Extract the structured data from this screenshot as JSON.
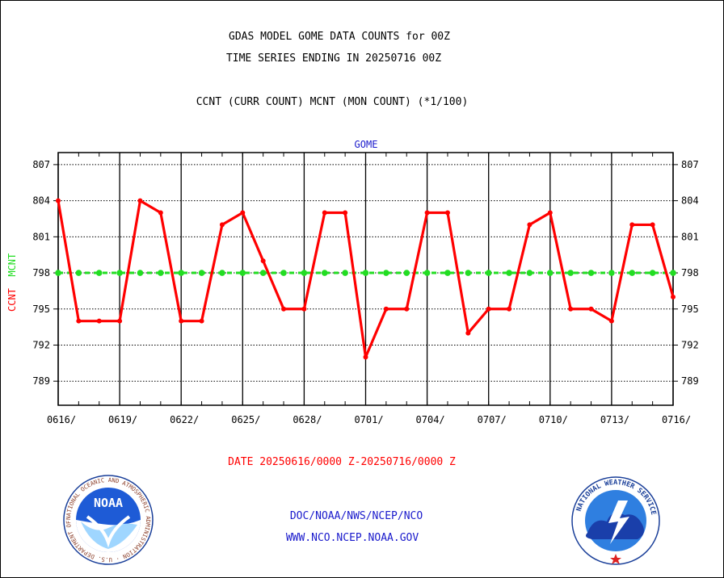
{
  "header": {
    "title1": "GDAS MODEL GOME DATA COUNTS for 00Z",
    "title2": "TIME SERIES ENDING IN 20250716 00Z",
    "title3": "CCNT (CURR COUNT) MCNT (MON COUNT) (*1/100)"
  },
  "footer": {
    "date_range": "DATE 20250616/0000 Z-20250716/0000 Z",
    "org_path": "DOC/NOAA/NWS/NCEP/NCO",
    "url": "WWW.NCO.NCEP.NOAA.GOV"
  },
  "logos": {
    "left_text": "NATIONAL OCEANIC AND ATMOSPHERIC ADMINISTRATION · U.S. DEPARTMENT OF COMMERCE",
    "left_center": "NOAA",
    "right_text": "NATIONAL WEATHER SERVICE"
  },
  "colors": {
    "ccnt": "#ff0000",
    "mcnt": "#22dd22",
    "title_blue": "#1a1acc"
  },
  "chart_data": {
    "type": "line",
    "title": "GOME",
    "ylabel_parts": [
      "CCNT",
      "MCNT"
    ],
    "ylim": [
      787,
      808
    ],
    "yticks": [
      789,
      792,
      795,
      798,
      801,
      804,
      807
    ],
    "x": [
      "0616",
      "0617",
      "0618",
      "0619",
      "0620",
      "0621",
      "0622",
      "0623",
      "0624",
      "0625",
      "0626",
      "0627",
      "0628",
      "0629",
      "0630",
      "0701",
      "0702",
      "0703",
      "0704",
      "0705",
      "0706",
      "0707",
      "0708",
      "0709",
      "0710",
      "0711",
      "0712",
      "0713",
      "0714",
      "0715",
      "0716"
    ],
    "xtick_labels": [
      "0616/",
      "0619/",
      "0622/",
      "0625/",
      "0628/",
      "0701/",
      "0704/",
      "0707/",
      "0710/",
      "0713/",
      "0716/"
    ],
    "grid": true,
    "series": [
      {
        "name": "CCNT",
        "color": "#ff0000",
        "values": [
          804,
          794,
          794,
          794,
          804,
          803,
          794,
          794,
          802,
          803,
          799,
          795,
          795,
          803,
          803,
          791,
          795,
          795,
          803,
          803,
          793,
          795,
          795,
          802,
          803,
          795,
          795,
          794,
          802,
          802,
          796
        ]
      },
      {
        "name": "MCNT",
        "color": "#22dd22",
        "values": [
          798,
          798,
          798,
          798,
          798,
          798,
          798,
          798,
          798,
          798,
          798,
          798,
          798,
          798,
          798,
          798,
          798,
          798,
          798,
          798,
          798,
          798,
          798,
          798,
          798,
          798,
          798,
          798,
          798,
          798,
          798
        ]
      }
    ]
  }
}
